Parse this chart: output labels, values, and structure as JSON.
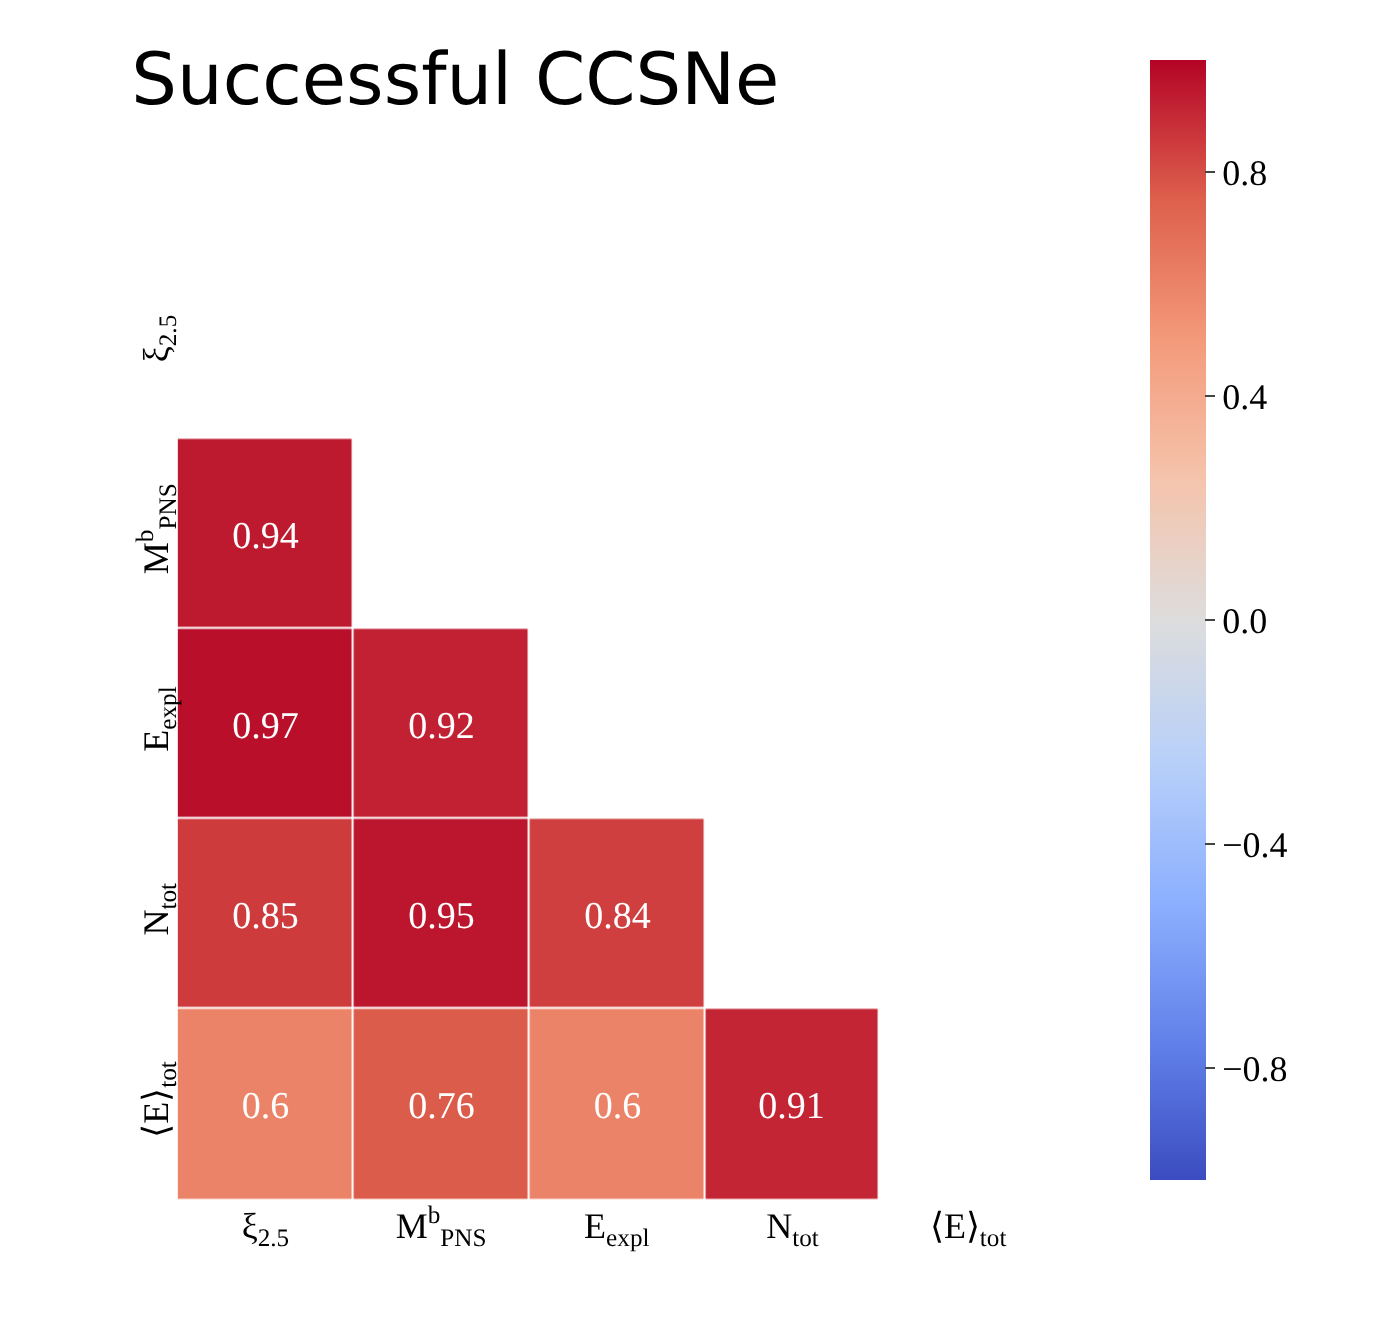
{
  "chart_data": {
    "type": "heatmap",
    "title": "Successful CCSNe",
    "categories": [
      "ξ$_{2.5}$",
      "M$^{b}$$_{PNS}$",
      "E$_{expl}$",
      "N$_{tot}$",
      "⟨E⟩$_{tot}$"
    ],
    "y_categories": [
      "ξ$_{2.5}$",
      "M$^{b}$$_{PNS}$",
      "E$_{expl}$",
      "N$_{tot}$",
      "⟨E⟩$_{tot}$"
    ],
    "cells": [
      [
        null,
        null,
        null,
        null,
        null
      ],
      [
        0.94,
        null,
        null,
        null,
        null
      ],
      [
        0.97,
        0.92,
        null,
        null,
        null
      ],
      [
        0.85,
        0.95,
        0.84,
        null,
        null
      ],
      [
        0.6,
        0.76,
        0.6,
        0.91,
        null
      ]
    ],
    "data_labels": true,
    "clim": [
      -1,
      1
    ],
    "cticks": [
      {
        "value": 0.8,
        "label": "0.8"
      },
      {
        "value": 0.4,
        "label": "0.4"
      },
      {
        "value": 0,
        "label": "0.0"
      },
      {
        "value": -0.4,
        "label": "−0.4"
      },
      {
        "value": -0.8,
        "label": "−0.8"
      }
    ]
  }
}
